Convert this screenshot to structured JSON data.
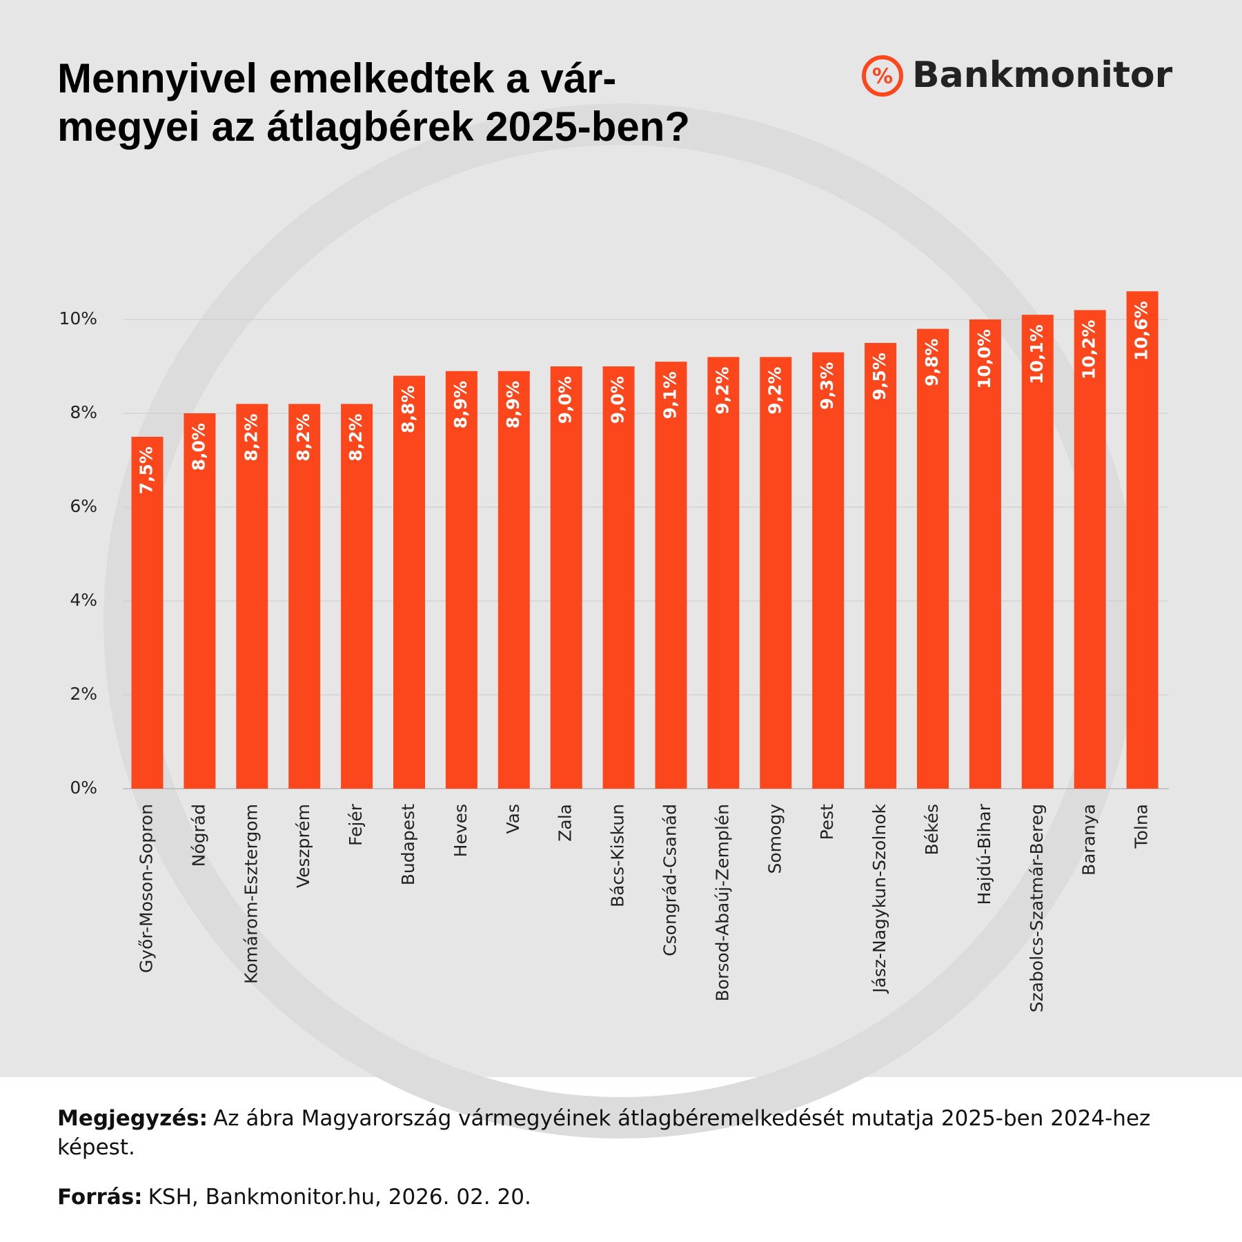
{
  "chart_data": {
    "type": "bar",
    "title_lines": [
      "Mennyivel emelkedtek a vár-",
      "megyei az átlagbérek 2025-ben?"
    ],
    "brand_icon": "%",
    "brand": "Bankmonitor",
    "categories": [
      "Győr-Moson-Sopron",
      "Nógrád",
      "Komárom-Esztergom",
      "Veszprém",
      "Fejér",
      "Budapest",
      "Heves",
      "Vas",
      "Zala",
      "Bács-Kiskun",
      "Csongrád-Csanád",
      "Borsod-Abaúj-Zemplén",
      "Somogy",
      "Pest",
      "Jász-Nagykun-Szolnok",
      "Békés",
      "Hajdú-Bihar",
      "Szabolcs-Szatmár-Bereg",
      "Baranya",
      "Tolna"
    ],
    "values": [
      7.5,
      8.0,
      8.2,
      8.2,
      8.2,
      8.8,
      8.9,
      8.9,
      9.0,
      9.0,
      9.1,
      9.2,
      9.2,
      9.3,
      9.5,
      9.8,
      10.0,
      10.1,
      10.2,
      10.6
    ],
    "value_labels": [
      "7,5%",
      "8,0%",
      "8,2%",
      "8,2%",
      "8,2%",
      "8,8%",
      "8,9%",
      "8,9%",
      "9,0%",
      "9,0%",
      "9,1%",
      "9,2%",
      "9,2%",
      "9,3%",
      "9,5%",
      "9,8%",
      "10,0%",
      "10,1%",
      "10,2%",
      "10,6%"
    ],
    "color": "#fc461c",
    "ylim": [
      0,
      11
    ],
    "yticks": [
      {
        "value": 0,
        "label": "0%"
      },
      {
        "value": 2,
        "label": "2%"
      },
      {
        "value": 4,
        "label": "4%"
      },
      {
        "value": 6,
        "label": "6%"
      },
      {
        "value": 8,
        "label": "8%"
      },
      {
        "value": 10,
        "label": "10%"
      }
    ],
    "grid": true,
    "notes": [
      {
        "label": "Megjegyzés:",
        "text": "Az ábra Magyarország vármegyéinek átlagbéremelkedését mutatja 2025-ben 2024-hez képest."
      },
      {
        "label": "Forrás:",
        "text": "KSH, Bankmonitor.hu, 2026. 02. 20."
      }
    ]
  }
}
